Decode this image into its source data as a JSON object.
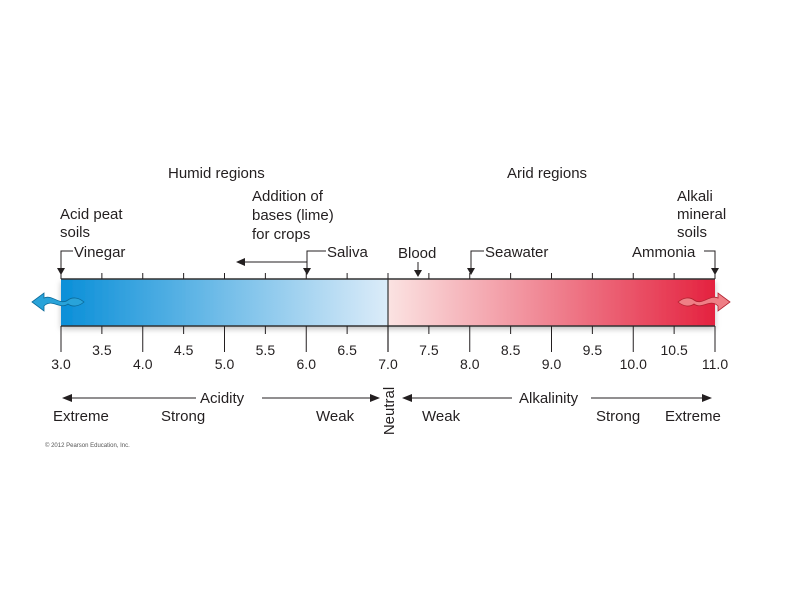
{
  "regions": {
    "humid": "Humid regions",
    "arid": "Arid regions"
  },
  "annotations": {
    "acid_peat": [
      "Acid peat",
      "soils"
    ],
    "vinegar": "Vinegar",
    "lime": [
      "Addition of",
      "bases (lime)",
      "for crops"
    ],
    "saliva": "Saliva",
    "blood": "Blood",
    "seawater": "Seawater",
    "ammonia": "Ammonia",
    "alkali": [
      "Alkali",
      "mineral",
      "soils"
    ]
  },
  "scale": {
    "min": 3.0,
    "max": 11.0,
    "major_ticks": [
      "3.0",
      "4.0",
      "5.0",
      "6.0",
      "7.0",
      "8.0",
      "9.0",
      "10.0",
      "11.0"
    ],
    "minor_ticks": [
      "3.5",
      "4.5",
      "5.5",
      "6.5",
      "7.5",
      "8.5",
      "9.5",
      "10.5"
    ],
    "markers": {
      "vinegar": 3.0,
      "saliva": 6.0,
      "blood": 7.4,
      "seawater": 8.0,
      "ammonia": 11.0
    },
    "lime_arrow_from": 6.0,
    "lime_arrow_to": 5.2
  },
  "colors": {
    "acid_strong": "#0a8fd8",
    "acid_weak": "#dcecf9",
    "alk_weak": "#fbe3e2",
    "alk_strong": "#e4223f"
  },
  "bottom": {
    "acidity": "Acidity",
    "alkalinity": "Alkalinity",
    "neutral": "Neutral",
    "extreme_left": "Extreme",
    "strong_left": "Strong",
    "weak_left": "Weak",
    "weak_right": "Weak",
    "strong_right": "Strong",
    "extreme_right": "Extreme"
  },
  "copyright": "© 2012 Pearson Education, Inc."
}
